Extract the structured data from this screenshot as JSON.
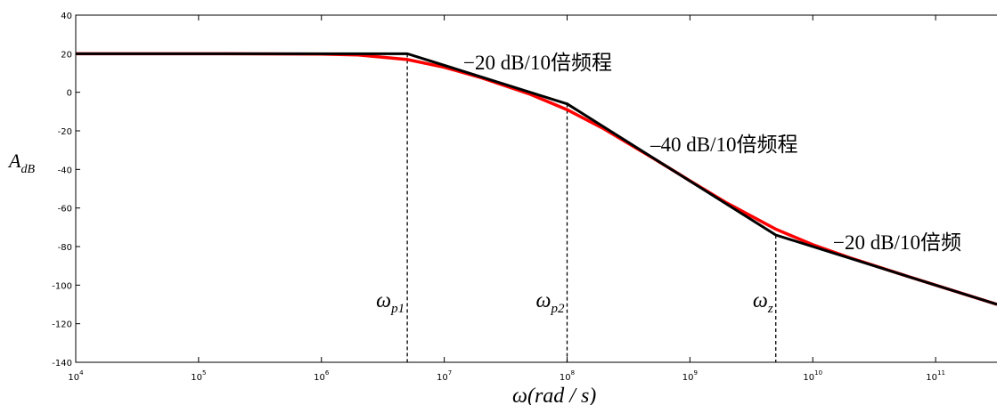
{
  "chart_data": {
    "type": "line",
    "y_label": {
      "text": "A",
      "sub": "dB"
    },
    "x_label": {
      "text": "ω",
      "rest": "(rad / s)"
    },
    "log_x": true,
    "xlim": [
      10000,
      316000000000
    ],
    "ylim": [
      -140,
      40
    ],
    "xticks": [
      {
        "value": 10000,
        "label": "10",
        "exponent": "4"
      },
      {
        "value": 100000,
        "label": "10",
        "exponent": "5"
      },
      {
        "value": 1000000,
        "label": "10",
        "exponent": "6"
      },
      {
        "value": 10000000,
        "label": "10",
        "exponent": "7"
      },
      {
        "value": 100000000,
        "label": "10",
        "exponent": "8"
      },
      {
        "value": 1000000000,
        "label": "10",
        "exponent": "9"
      },
      {
        "value": 10000000000,
        "label": "10",
        "exponent": "10"
      },
      {
        "value": 100000000000,
        "label": "10",
        "exponent": "11"
      }
    ],
    "yticks": [
      40,
      20,
      0,
      -20,
      -40,
      -60,
      -80,
      -100,
      -120,
      -140
    ],
    "series": [
      {
        "color": "#ff0000",
        "x": [
          10000,
          100000,
          1000000,
          2000000,
          5000000,
          10000000,
          20000000,
          50000000,
          100000000,
          200000000,
          500000000,
          1000000000,
          2000000000,
          5000000000,
          10000000000,
          20000000000,
          50000000000,
          100000000000,
          316000000000
        ],
        "values": [
          20,
          20,
          19.83,
          19.36,
          16.98,
          12.97,
          7.53,
          -1.01,
          -9.04,
          -19.02,
          -34.11,
          -45.89,
          -57.43,
          -70.97,
          -79.03,
          -85.76,
          -93.94,
          -99.99,
          -109.99
        ]
      },
      {
        "color": "#000000",
        "x": [
          10000,
          5000000,
          100000000,
          5000000000,
          316000000000
        ],
        "values": [
          20,
          20,
          -6,
          -74,
          -110
        ]
      }
    ],
    "markers": [
      {
        "x": 5000000,
        "y": 20,
        "label": "ω",
        "sub": "p1"
      },
      {
        "x": 100000000,
        "y": -6,
        "label": "ω",
        "sub": "p2"
      },
      {
        "x": 5000000000,
        "y": -74,
        "label": "ω",
        "sub": "z"
      }
    ],
    "annotations": [
      "−20 dB/10倍频程",
      "–40 dB/10倍频程",
      "−20 dB/10倍频"
    ]
  }
}
